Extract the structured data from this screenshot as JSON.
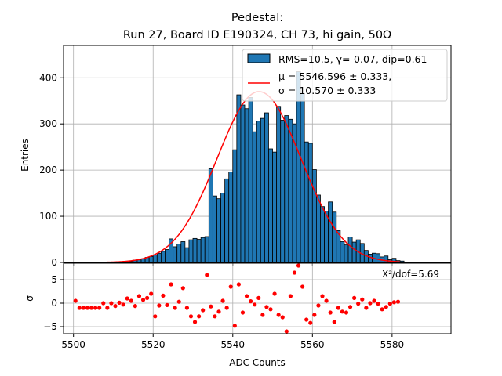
{
  "chart_data": {
    "type": "bar",
    "title_line1": "Pedestal:",
    "title_line2": "Run 27, Board ID E190324, CH 73, hi gain, 50Ω",
    "xlabel": "ADC Counts",
    "ylabel_top": "Entries",
    "ylabel_bottom": "σ",
    "xlim": [
      5497.5,
      5594.8
    ],
    "ylim_top": [
      0,
      470
    ],
    "ylim_bottom": [
      -6.5,
      8.5
    ],
    "x_ticks": [
      5500,
      5520,
      5540,
      5560,
      5580
    ],
    "y_ticks_top": [
      0,
      100,
      200,
      300,
      400
    ],
    "y_ticks_bottom": [
      -5,
      0,
      5
    ],
    "grid": true,
    "legend": {
      "position": "top-right",
      "hist_label": "RMS=10.5, γ=-0.07, dip=0.61",
      "fit_label_mu": "μ = 5546.596 ± 0.333,",
      "fit_label_sigma": "σ = 10.570 ± 0.333"
    },
    "chi2_text": "X²/dof=5.69",
    "histogram": {
      "bin_start": 5500,
      "bin_width": 1,
      "counts": [
        0,
        0,
        0,
        0,
        0,
        0,
        0,
        0,
        0,
        0,
        0,
        0,
        0,
        1,
        2,
        5,
        6,
        8,
        11,
        13,
        16,
        20,
        24,
        28,
        51,
        34,
        40,
        45,
        32,
        49,
        52,
        50,
        54,
        56,
        203,
        144,
        138,
        150,
        181,
        196,
        244,
        363,
        341,
        333,
        357,
        283,
        306,
        312,
        324,
        246,
        239,
        338,
        308,
        318,
        310,
        300,
        413,
        366,
        261,
        258,
        201,
        146,
        121,
        111,
        131,
        109,
        69,
        45,
        38,
        55,
        44,
        49,
        41,
        26,
        18,
        20,
        19,
        12,
        14,
        6,
        9,
        4,
        3,
        0,
        0,
        0
      ],
      "face_color": "#1f77b4",
      "edge_color": "#000000"
    },
    "fit": {
      "mu": 5546.596,
      "sigma": 10.57,
      "amplitude": 370,
      "x_range": [
        5500,
        5582
      ],
      "color": "#ff0000"
    },
    "residuals": {
      "x": [
        5500.5,
        5501.5,
        5502.5,
        5503.5,
        5504.5,
        5505.5,
        5506.5,
        5507.5,
        5508.5,
        5509.5,
        5510.5,
        5511.5,
        5512.5,
        5513.5,
        5514.5,
        5515.5,
        5516.5,
        5517.5,
        5518.5,
        5519.5,
        5520.5,
        5521.5,
        5522.5,
        5523.5,
        5524.5,
        5525.5,
        5526.5,
        5527.5,
        5528.5,
        5529.5,
        5530.5,
        5531.5,
        5532.5,
        5533.5,
        5534.5,
        5535.5,
        5536.5,
        5537.5,
        5538.5,
        5539.5,
        5540.5,
        5541.5,
        5542.5,
        5543.5,
        5544.5,
        5545.5,
        5546.5,
        5547.5,
        5548.5,
        5549.5,
        5550.5,
        5551.5,
        5552.5,
        5553.5,
        5554.5,
        5555.5,
        5556.5,
        5557.5,
        5558.5,
        5559.5,
        5560.5,
        5561.5,
        5562.5,
        5563.5,
        5564.5,
        5565.5,
        5566.5,
        5567.5,
        5568.5,
        5569.5,
        5570.5,
        5571.5,
        5572.5,
        5573.5,
        5574.5,
        5575.5,
        5576.5,
        5577.5,
        5578.5,
        5579.5,
        5580.5,
        5581.5
      ],
      "values": [
        0.5,
        -1,
        -1,
        -1,
        -1,
        -1,
        -1,
        0,
        -1,
        0,
        -0.6,
        0.1,
        -0.3,
        1,
        0.5,
        -0.6,
        1.5,
        0.7,
        1.1,
        2,
        -2.8,
        -0.5,
        1.6,
        -0.4,
        4,
        -1,
        0.3,
        3.2,
        -1,
        -2.8,
        -4,
        -2.8,
        -1.5,
        6,
        -0.7,
        -2.8,
        -1.8,
        0.5,
        -1,
        3.5,
        -4.8,
        4,
        -2,
        1.5,
        0.4,
        -0.3,
        1.1,
        -2.5,
        -0.8,
        -1.3,
        2,
        -2.5,
        -3,
        -6,
        1.5,
        6.5,
        8,
        3.5,
        -3.5,
        -4.2,
        -2.5,
        -0.5,
        1.5,
        0.5,
        -2,
        -4,
        -1,
        -1.8,
        -2,
        -0.8,
        1.1,
        -0.1,
        0.8,
        -1,
        0,
        0.5,
        -0.1,
        -1.3,
        -0.8,
        -0.1,
        0.2,
        0.3
      ],
      "color": "#ff0000"
    }
  }
}
